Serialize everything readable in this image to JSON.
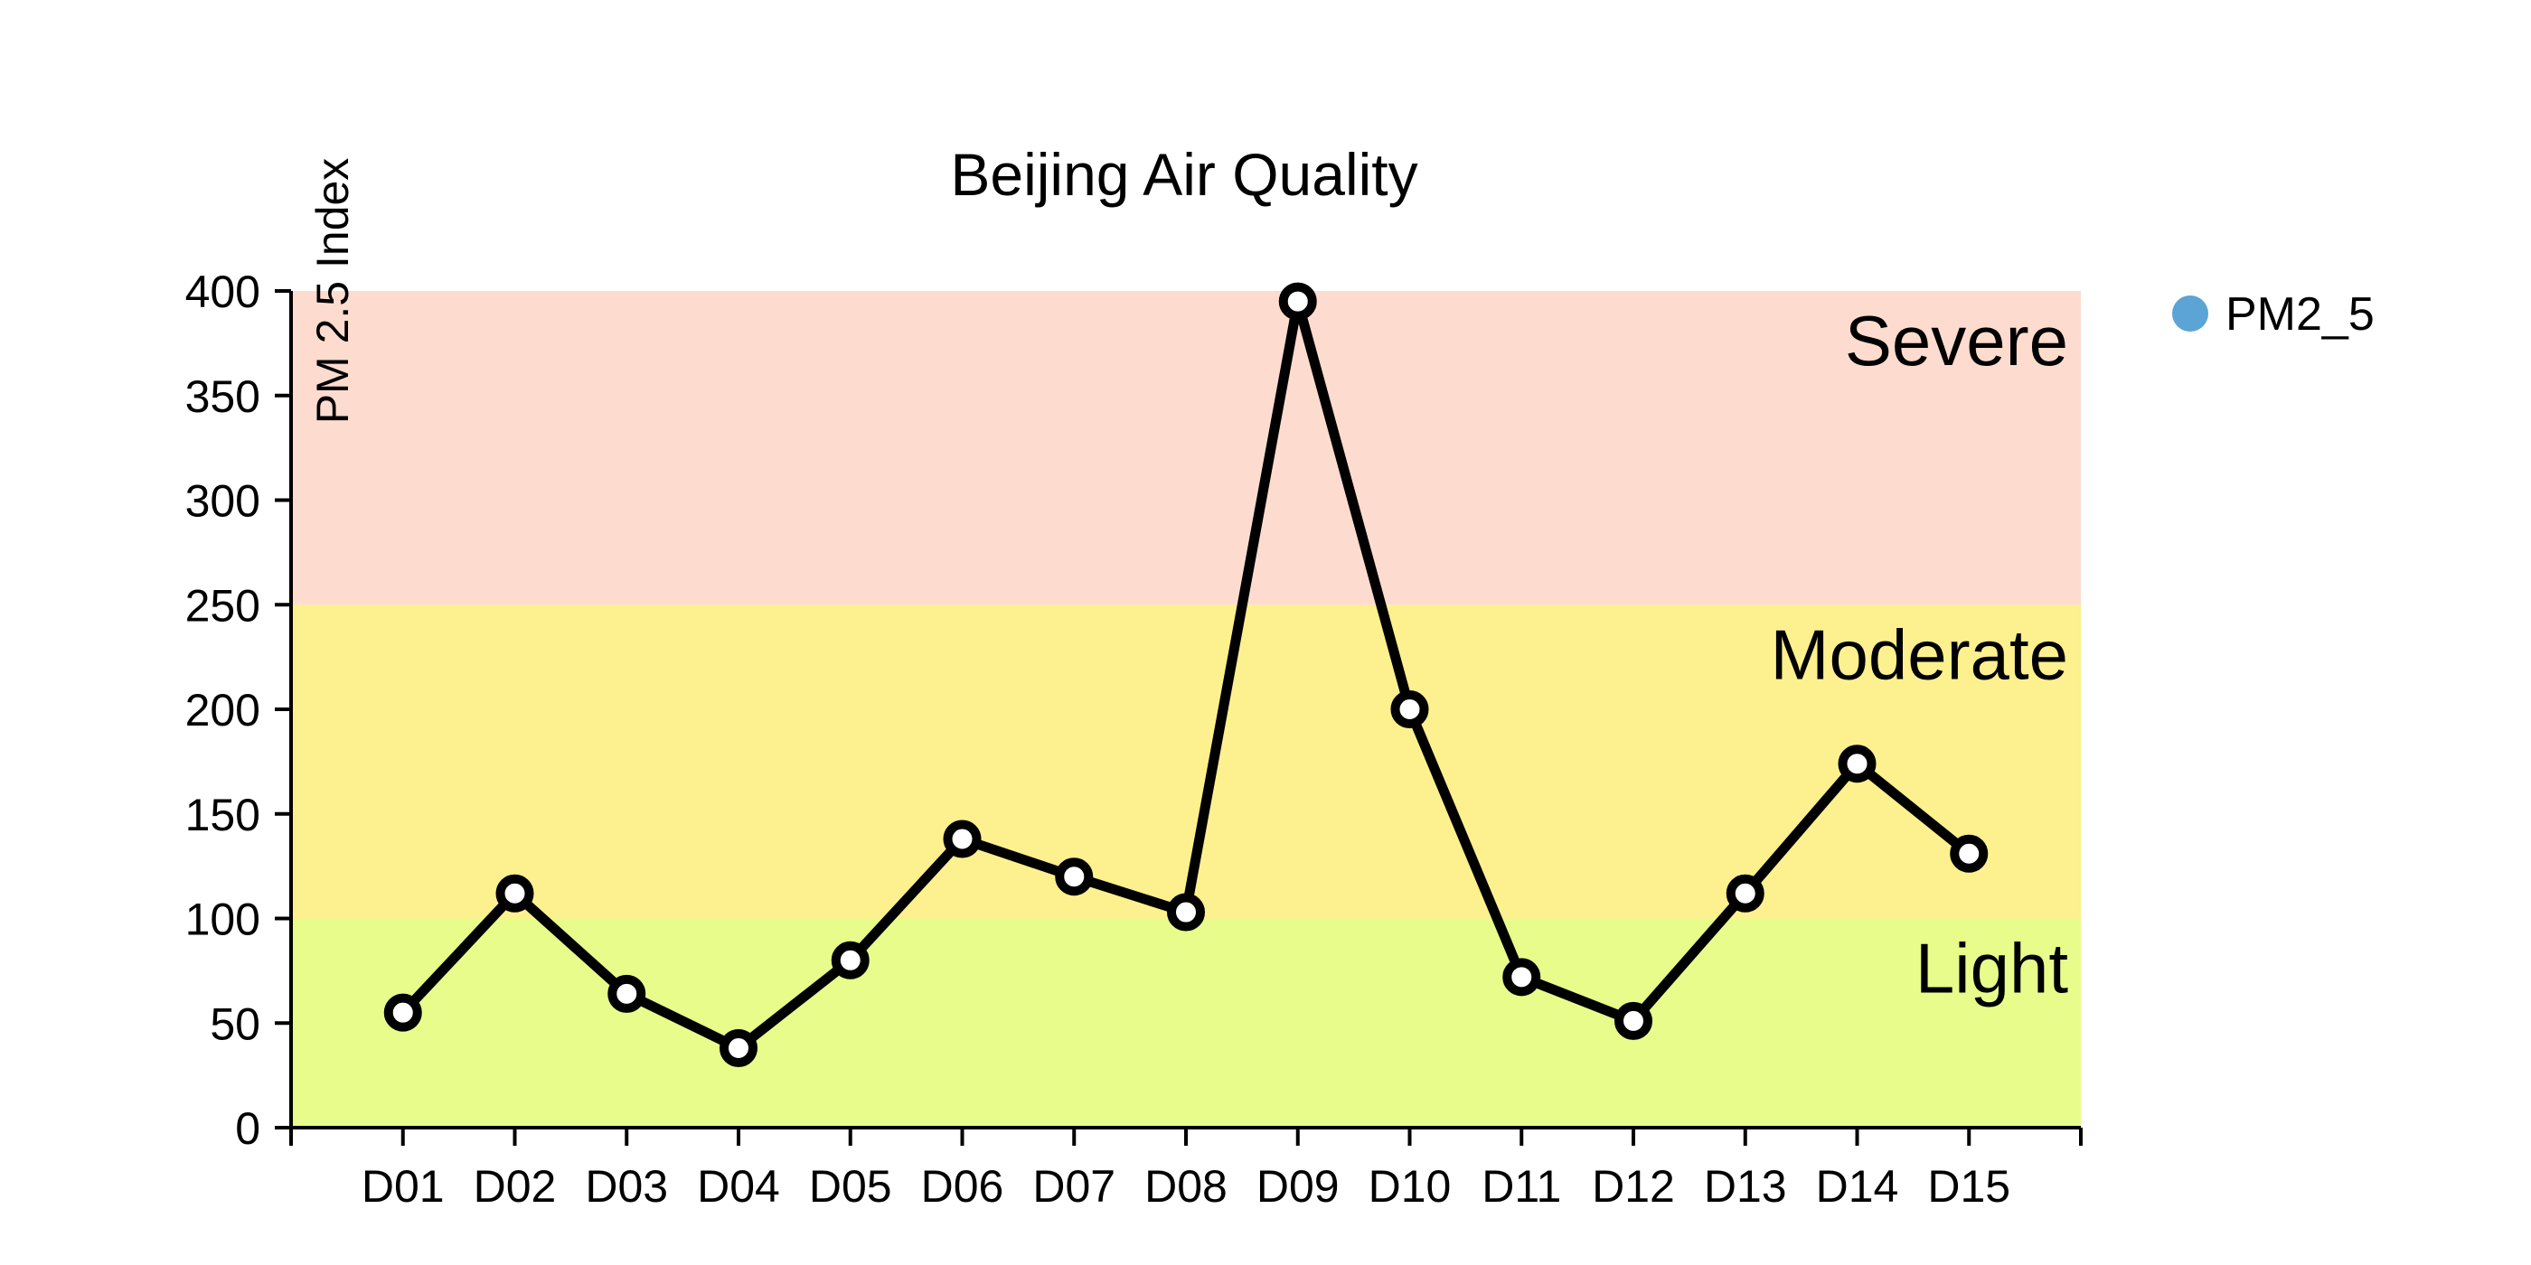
{
  "chart_data": {
    "type": "line",
    "title": "Beijing Air Quality",
    "xlabel": "",
    "ylabel": "PM 2.5 Index",
    "ylim": [
      0,
      400
    ],
    "yticks": [
      0,
      50,
      100,
      150,
      200,
      250,
      300,
      350,
      400
    ],
    "categories": [
      "D01",
      "D02",
      "D03",
      "D04",
      "D05",
      "D06",
      "D07",
      "D08",
      "D09",
      "D10",
      "D11",
      "D12",
      "D13",
      "D14",
      "D15"
    ],
    "series": [
      {
        "name": "PM2_5",
        "color": "#000000",
        "legend_color": "#5ca3d6",
        "values": [
          55,
          112,
          64,
          38,
          80,
          138,
          120,
          103,
          395,
          200,
          72,
          51,
          112,
          174,
          131
        ]
      }
    ],
    "bands": [
      {
        "label": "Light",
        "from": 0,
        "to": 100,
        "color": "#e8fc8b"
      },
      {
        "label": "Moderate",
        "from": 100,
        "to": 250,
        "color": "#fdf08e"
      },
      {
        "label": "Severe",
        "from": 250,
        "to": 400,
        "color": "#fddccf"
      }
    ],
    "legend_position": "top-right",
    "grid": false
  }
}
